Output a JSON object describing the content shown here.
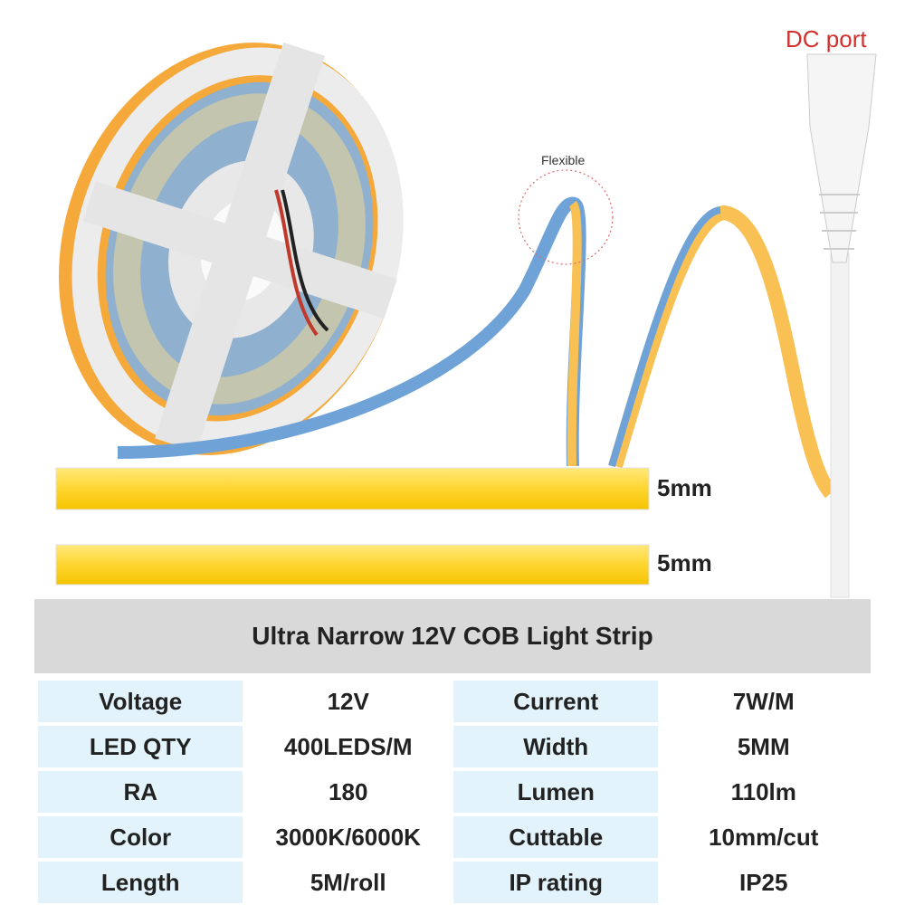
{
  "labels": {
    "dc_port": "DC port",
    "flexible": "Flexible",
    "width_1": "5mm",
    "width_2": "5mm"
  },
  "table": {
    "title": "Ultra Narrow 12V COB Light Strip",
    "rows": [
      [
        "Voltage",
        "12V",
        "Current",
        "7W/M"
      ],
      [
        "LED QTY",
        "400LEDS/M",
        "Width",
        "5MM"
      ],
      [
        "RA",
        "180",
        "Lumen",
        "110lm"
      ],
      [
        "Color",
        "3000K/6000K",
        "Cuttable",
        "10mm/cut"
      ],
      [
        "Length",
        "5M/roll",
        "IP rating",
        "IP25"
      ]
    ]
  }
}
